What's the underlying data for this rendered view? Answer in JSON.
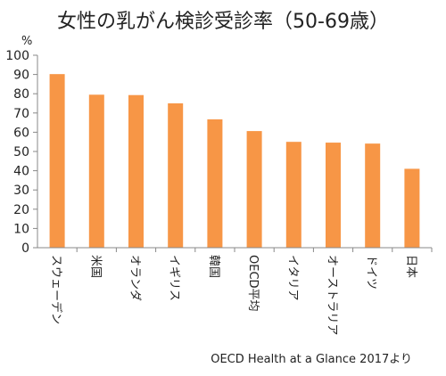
{
  "chart_data": {
    "type": "bar",
    "title": "女性の乳がん検診受診率（50-69歳）",
    "ylabel": "%",
    "ylim": [
      0,
      100
    ],
    "yticks": [
      0,
      10,
      20,
      30,
      40,
      50,
      60,
      70,
      80,
      90,
      100
    ],
    "grid": false,
    "bar_color": "#F79646",
    "categories": [
      "スウェーデン",
      "米国",
      "オランダ",
      "イギリス",
      "韓国",
      "OECD平均",
      "イタリア",
      "オーストラリア",
      "ドイツ",
      "日本"
    ],
    "values": [
      90.2,
      79.5,
      79.3,
      75.0,
      66.7,
      60.6,
      55.0,
      54.6,
      54.1,
      41.0
    ],
    "source": "OECD Health at a Glance 2017より"
  }
}
